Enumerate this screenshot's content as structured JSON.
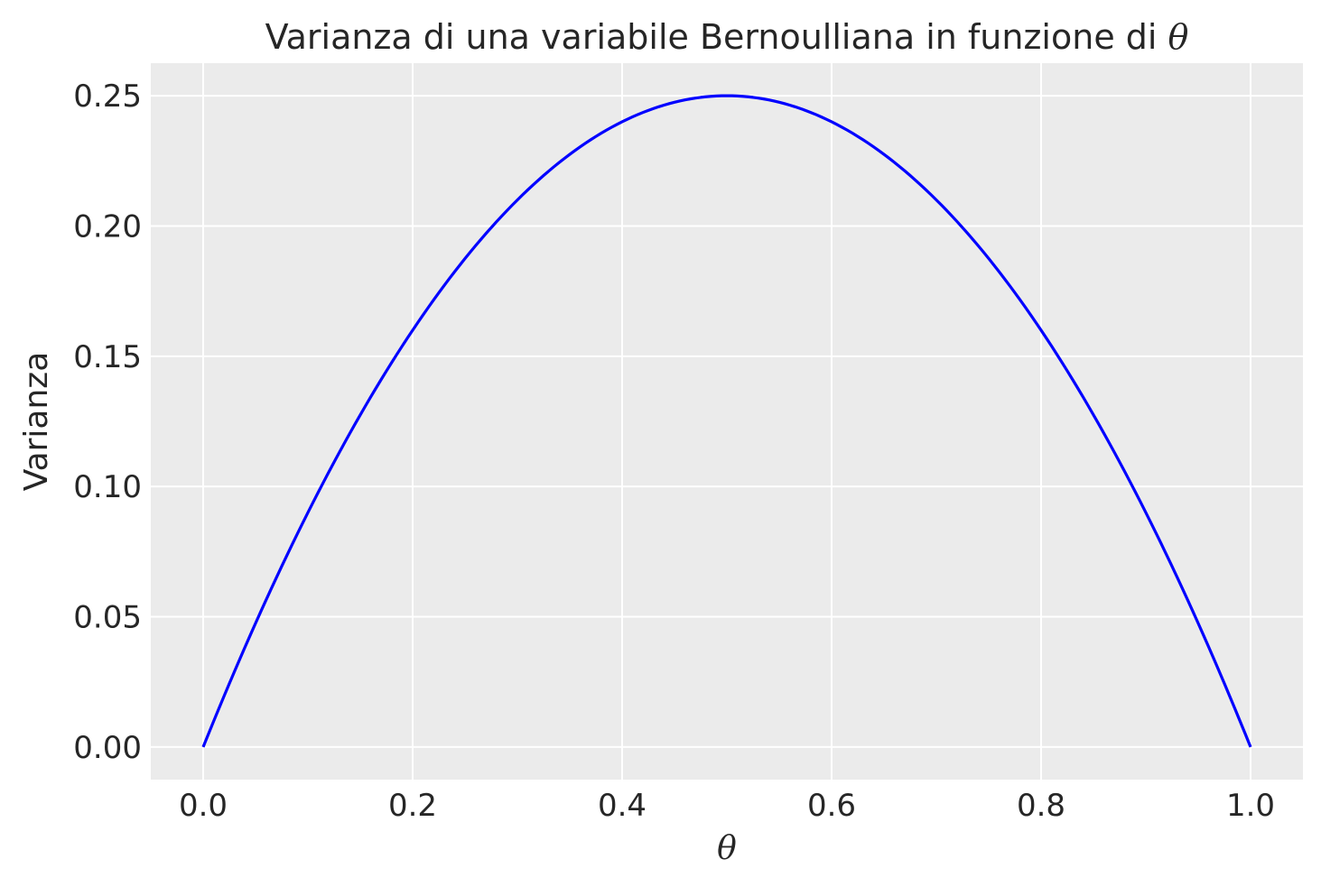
{
  "chart_data": {
    "type": "line",
    "title_text": "Varianza di una variabile Bernoulliana in funzione di",
    "title_symbol": "θ",
    "xlabel": "θ",
    "ylabel": "Varianza",
    "xlim": [
      -0.05,
      1.05
    ],
    "ylim": [
      -0.0125,
      0.2625
    ],
    "xticks": [
      0.0,
      0.2,
      0.4,
      0.6,
      0.8,
      1.0
    ],
    "xtick_labels": [
      "0.0",
      "0.2",
      "0.4",
      "0.6",
      "0.8",
      "1.0"
    ],
    "yticks": [
      0.0,
      0.05,
      0.1,
      0.15,
      0.2,
      0.25
    ],
    "ytick_labels": [
      "0.00",
      "0.05",
      "0.10",
      "0.15",
      "0.20",
      "0.25"
    ],
    "grid": true,
    "series": [
      {
        "color": "#0000ff",
        "x": [
          0.0,
          0.05,
          0.1,
          0.15,
          0.2,
          0.25,
          0.3,
          0.35,
          0.4,
          0.45,
          0.5,
          0.55,
          0.6,
          0.65,
          0.7,
          0.75,
          0.8,
          0.85,
          0.9,
          0.95,
          1.0
        ],
        "y": [
          0.0,
          0.0475,
          0.09,
          0.1275,
          0.16,
          0.1875,
          0.21,
          0.2275,
          0.24,
          0.2475,
          0.25,
          0.2475,
          0.24,
          0.2275,
          0.21,
          0.1875,
          0.16,
          0.1275,
          0.09,
          0.0475,
          0.0
        ]
      }
    ],
    "colors": {
      "plot_background": "#ebebeb",
      "grid": "#ffffff",
      "text": "#262626"
    }
  }
}
